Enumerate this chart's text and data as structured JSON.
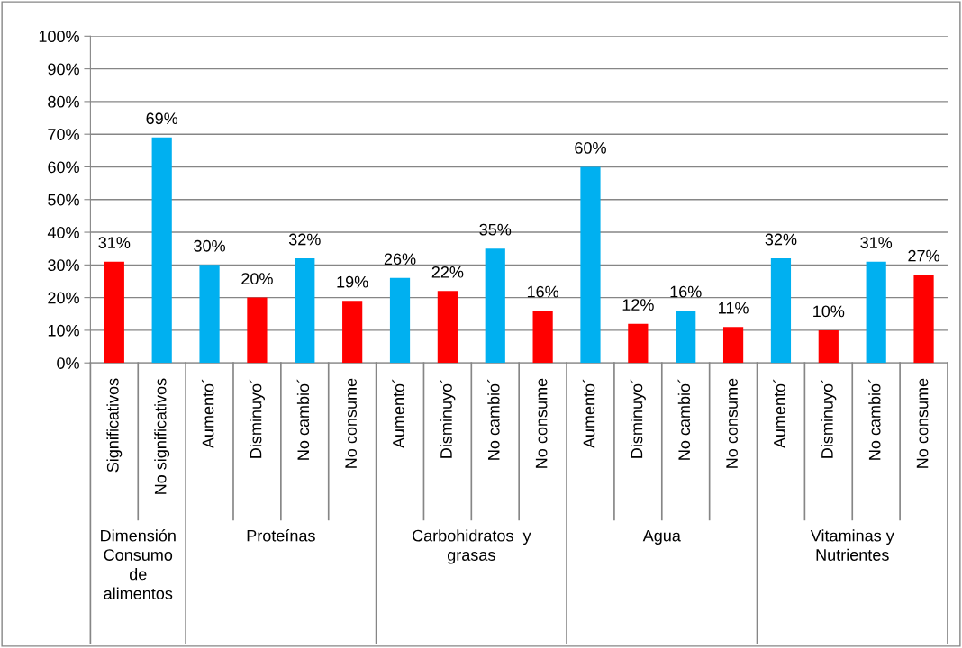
{
  "chart_data": {
    "type": "bar",
    "categories": [
      "Significativos",
      "No significativos",
      "Aumento´",
      "Disminuyo´",
      "No cambio´",
      "No consume",
      "Aumento´",
      "Disminuyo´",
      "No cambio´",
      "No consume",
      "Aumento´",
      "Disminuyo´",
      "No cambio´",
      "No consume",
      "Aumento´",
      "Disminuyo´",
      "No cambio´",
      "No consume"
    ],
    "values": [
      31,
      69,
      30,
      20,
      32,
      19,
      26,
      22,
      35,
      16,
      60,
      12,
      16,
      11,
      32,
      10,
      31,
      27
    ],
    "value_labels": [
      "31%",
      "69%",
      "30%",
      "20%",
      "32%",
      "19%",
      "26%",
      "22%",
      "35%",
      "16%",
      "60%",
      "12%",
      "16%",
      "11%",
      "32%",
      "10%",
      "31%",
      "27%"
    ],
    "colors": [
      "#ff0000",
      "#00b0f0",
      "#00b0f0",
      "#ff0000",
      "#00b0f0",
      "#ff0000",
      "#00b0f0",
      "#ff0000",
      "#00b0f0",
      "#ff0000",
      "#00b0f0",
      "#ff0000",
      "#00b0f0",
      "#ff0000",
      "#00b0f0",
      "#ff0000",
      "#00b0f0",
      "#ff0000"
    ],
    "ylim": [
      0,
      100
    ],
    "yticks": [
      {
        "value": 0,
        "label": "0%"
      },
      {
        "value": 10,
        "label": "10%"
      },
      {
        "value": 20,
        "label": "20%"
      },
      {
        "value": 30,
        "label": "30%"
      },
      {
        "value": 40,
        "label": "40%"
      },
      {
        "value": 50,
        "label": "50%"
      },
      {
        "value": 60,
        "label": "60%"
      },
      {
        "value": 70,
        "label": "70%"
      },
      {
        "value": 80,
        "label": "80%"
      },
      {
        "value": 90,
        "label": "90%"
      },
      {
        "value": 100,
        "label": "100%"
      }
    ],
    "grid": "y",
    "legend": false,
    "annotations": [
      "Dimensión\nConsumo\nde\nalimentos",
      "Proteínas",
      "Carbohidratos  y\ngrasas",
      "Agua",
      "Vitaminas y\nNutrientes"
    ]
  }
}
